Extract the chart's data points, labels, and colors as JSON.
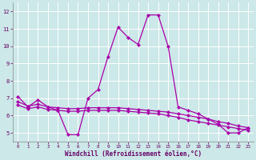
{
  "x": [
    0,
    1,
    2,
    3,
    4,
    5,
    6,
    7,
    8,
    9,
    10,
    11,
    12,
    13,
    14,
    15,
    16,
    17,
    18,
    19,
    20,
    21,
    22,
    23
  ],
  "line1": [
    7.1,
    6.5,
    6.9,
    6.5,
    6.3,
    4.9,
    4.9,
    7.0,
    7.5,
    9.4,
    11.1,
    10.5,
    10.1,
    11.8,
    11.8,
    10.0,
    6.5,
    6.3,
    6.1,
    5.8,
    5.5,
    5.0,
    5.0,
    5.3
  ],
  "line2": [
    6.8,
    6.55,
    6.65,
    6.5,
    6.45,
    6.4,
    6.4,
    6.45,
    6.45,
    6.45,
    6.45,
    6.4,
    6.35,
    6.3,
    6.25,
    6.2,
    6.1,
    6.0,
    5.9,
    5.8,
    5.65,
    5.55,
    5.4,
    5.3
  ],
  "line3": [
    6.6,
    6.4,
    6.5,
    6.35,
    6.3,
    6.25,
    6.25,
    6.3,
    6.3,
    6.3,
    6.3,
    6.25,
    6.2,
    6.15,
    6.1,
    6.0,
    5.9,
    5.75,
    5.65,
    5.55,
    5.45,
    5.35,
    5.25,
    5.15
  ],
  "bg_color": "#cce8e8",
  "grid_color": "#ffffff",
  "line_color": "#aa00aa",
  "tick_color": "#660066",
  "xlabel": "Windchill (Refroidissement éolien,°C)",
  "ylim": [
    4.5,
    12.5
  ],
  "xlim": [
    -0.5,
    23.5
  ],
  "yticks": [
    5,
    6,
    7,
    8,
    9,
    10,
    11,
    12
  ],
  "xticks": [
    0,
    1,
    2,
    3,
    4,
    5,
    6,
    7,
    8,
    9,
    10,
    11,
    12,
    13,
    14,
    15,
    16,
    17,
    18,
    19,
    20,
    21,
    22,
    23
  ]
}
